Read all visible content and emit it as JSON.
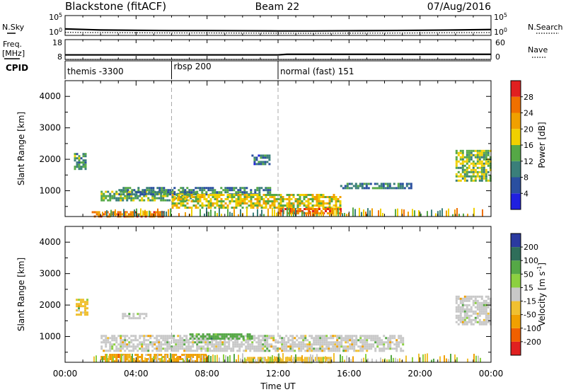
{
  "header": {
    "title": "Blackstone (fitACF)",
    "beam": "Beam 22",
    "date": "07/Aug/2016"
  },
  "chart_data": [
    {
      "type": "line",
      "panel": "noise",
      "left_label": "N.Sky",
      "right_label": "N.Search",
      "y_ticks_left": [
        "10^5",
        "10^0"
      ],
      "y_ticks_right": [
        "10^5",
        "10^0"
      ],
      "series": [
        {
          "name": "N.Sky",
          "style": "solid",
          "x": [
            0,
            2,
            4,
            6,
            8,
            10,
            12,
            14,
            16,
            18,
            20,
            22,
            24
          ],
          "y": [
            30,
            15,
            12,
            10,
            10,
            9,
            8,
            8,
            9,
            10,
            12,
            15,
            20
          ]
        },
        {
          "name": "N.Search",
          "style": "dotted",
          "x": [
            0,
            2,
            4,
            6,
            8,
            10,
            12,
            14,
            16,
            18,
            20,
            22,
            24
          ],
          "y": [
            3,
            2.5,
            2.2,
            2,
            2,
            1.8,
            1.7,
            1.6,
            1.7,
            1.8,
            2,
            2.3,
            2.6
          ]
        }
      ]
    },
    {
      "type": "line",
      "panel": "frequency",
      "left_label": "Freq.",
      "left_unit": "[MHz]",
      "right_label": "Nave",
      "ylim_left": [
        8,
        18
      ],
      "ylim_right": [
        0,
        60
      ],
      "y_ticks_left": [
        "18",
        "8"
      ],
      "y_ticks_right": [
        "60",
        "0"
      ],
      "series": [
        {
          "name": "Freq.",
          "style": "solid",
          "x": [
            0,
            4,
            8,
            12,
            12.5,
            16,
            20,
            24
          ],
          "y": [
            10.3,
            10.3,
            10.3,
            10.3,
            10.6,
            10.6,
            10.6,
            10.6
          ]
        },
        {
          "name": "Nave",
          "style": "dotted",
          "x": [
            0,
            24
          ],
          "y": [
            0,
            0
          ]
        }
      ]
    },
    {
      "type": "table",
      "panel": "cpid",
      "label": "CPID",
      "segments": [
        {
          "start": 0,
          "end": 6,
          "text": "themis -3300"
        },
        {
          "start": 6,
          "end": 12,
          "text": "rbsp 200"
        },
        {
          "start": 12,
          "end": 24,
          "text": "normal (fast) 151"
        }
      ]
    },
    {
      "type": "heatmap",
      "panel": "power",
      "ylabel": "Slant Range [km]",
      "xlim": [
        0,
        24
      ],
      "ylim": [
        180,
        4500
      ],
      "y_ticks": [
        1000,
        2000,
        3000,
        4000
      ],
      "colorbar": {
        "label": "Power [dB]",
        "ticks": [
          "4",
          "8",
          "12",
          "16",
          "20",
          "24",
          "28"
        ],
        "colors": [
          "#2020e0",
          "#2a4fa0",
          "#3a7f7a",
          "#55a846",
          "#f0d000",
          "#f0a000",
          "#f07000",
          "#e02020"
        ]
      },
      "regions": [
        {
          "x0": 1.5,
          "x1": 5.5,
          "y0": 200,
          "y1": 350,
          "value": 26
        },
        {
          "x0": 2.0,
          "x1": 7.5,
          "y0": 700,
          "y1": 1000,
          "value": 14
        },
        {
          "x0": 3.0,
          "x1": 11.5,
          "y0": 900,
          "y1": 1120,
          "value": 10
        },
        {
          "x0": 6.0,
          "x1": 15.5,
          "y0": 450,
          "y1": 900,
          "value": 18
        },
        {
          "x0": 12.0,
          "x1": 15.5,
          "y0": 250,
          "y1": 450,
          "value": 26
        },
        {
          "x0": 15.5,
          "x1": 19.5,
          "y0": 1100,
          "y1": 1250,
          "value": 9
        },
        {
          "x0": 22.0,
          "x1": 24.0,
          "y0": 1300,
          "y1": 2300,
          "value": 15
        },
        {
          "x0": 0.5,
          "x1": 1.2,
          "y0": 1700,
          "y1": 2200,
          "value": 12
        },
        {
          "x0": 10.5,
          "x1": 11.5,
          "y0": 1850,
          "y1": 2150,
          "value": 8
        }
      ],
      "dashed_x": [
        6,
        12
      ]
    },
    {
      "type": "heatmap",
      "panel": "velocity",
      "ylabel": "Slant Range [km]",
      "xlabel": "Time UT",
      "xlim": [
        0,
        24
      ],
      "ylim": [
        180,
        4500
      ],
      "x_ticks": [
        "00:00",
        "04:00",
        "08:00",
        "12:00",
        "16:00",
        "20:00",
        "00:00"
      ],
      "y_ticks": [
        1000,
        2000,
        3000,
        4000
      ],
      "colorbar": {
        "label": "Velocity [m s^-1]",
        "ticks": [
          "200",
          "100",
          "50",
          "15",
          "-15",
          "-50",
          "-100",
          "-200"
        ],
        "colors": [
          "#2b3aa0",
          "#2f6e5a",
          "#55a846",
          "#8cd040",
          "#c8c8c8",
          "#f0c030",
          "#f0a000",
          "#f06000",
          "#e02020"
        ]
      },
      "regions": [
        {
          "x0": 2.0,
          "x1": 19.0,
          "y0": 550,
          "y1": 1050,
          "value": 0
        },
        {
          "x0": 2.0,
          "x1": 8.0,
          "y0": 200,
          "y1": 450,
          "value": -60
        },
        {
          "x0": 7.0,
          "x1": 10.5,
          "y0": 900,
          "y1": 1100,
          "value": 60
        },
        {
          "x0": 10.0,
          "x1": 15.0,
          "y0": 200,
          "y1": 350,
          "value": -20
        },
        {
          "x0": 22.0,
          "x1": 24.0,
          "y0": 1400,
          "y1": 2300,
          "value": 0
        },
        {
          "x0": 3.2,
          "x1": 4.6,
          "y0": 1550,
          "y1": 1750,
          "value": 0
        },
        {
          "x0": 0.6,
          "x1": 1.2,
          "y0": 1700,
          "y1": 2200,
          "value": -20
        }
      ],
      "dashed_x": [
        6,
        12
      ]
    }
  ]
}
